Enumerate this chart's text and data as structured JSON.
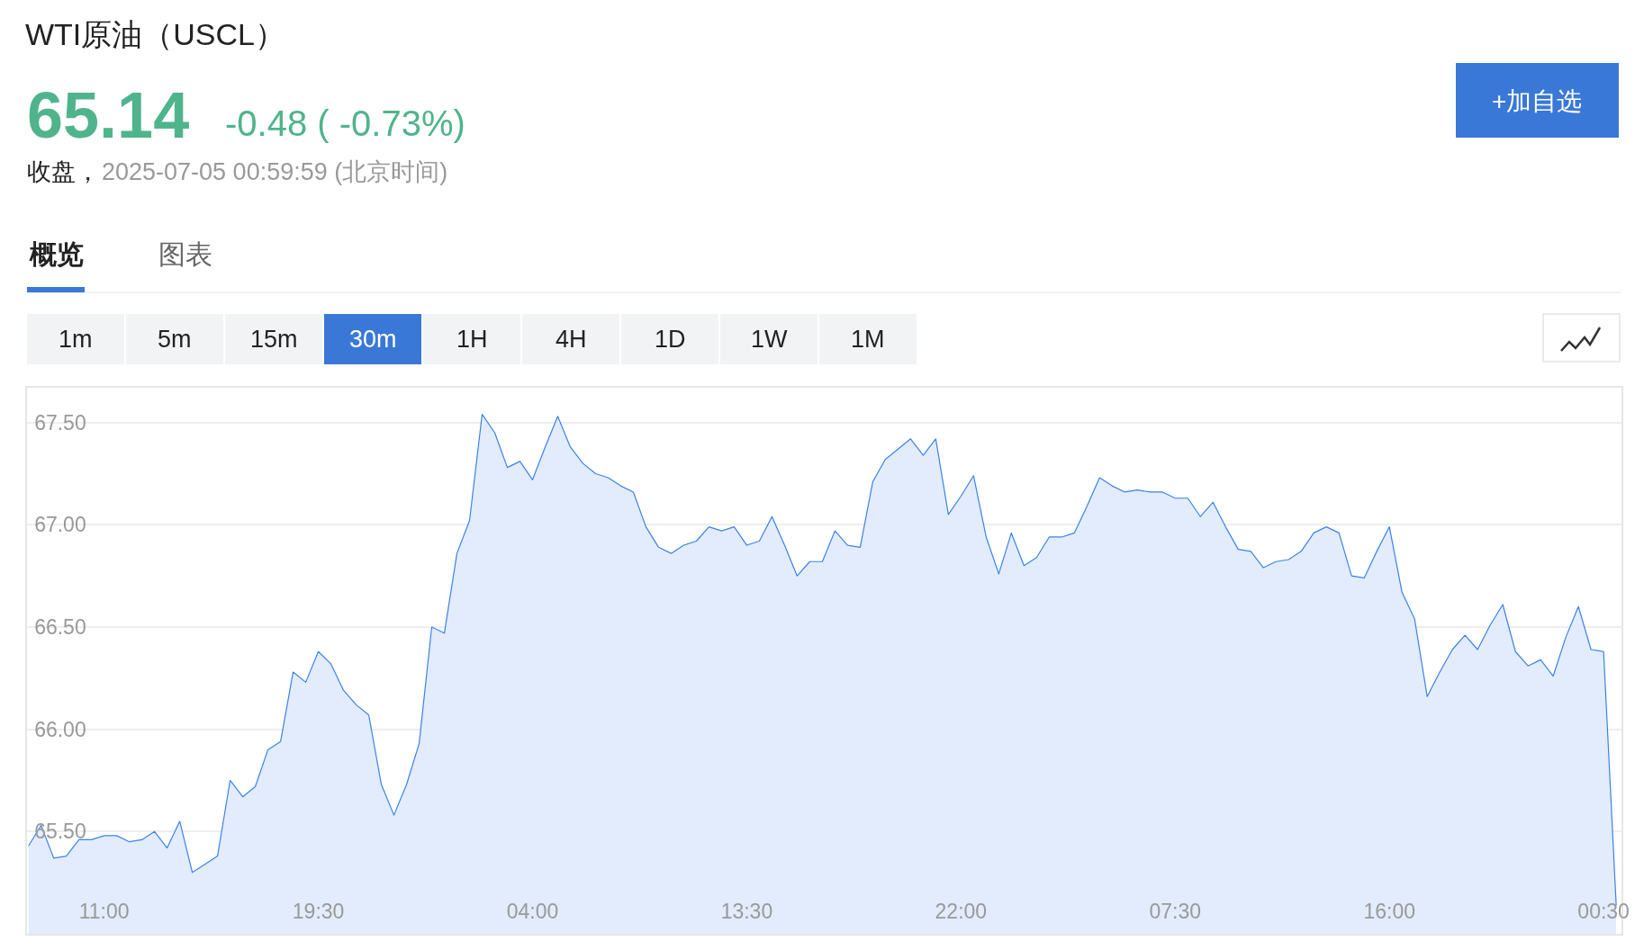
{
  "chart_data": {
    "type": "area",
    "title": "WTI原油（USCL）",
    "categories": [
      null,
      null,
      null,
      null,
      null,
      null,
      "11:00",
      null,
      null,
      null,
      null,
      null,
      null,
      null,
      null,
      null,
      null,
      null,
      null,
      null,
      null,
      null,
      null,
      "19:30",
      null,
      null,
      null,
      null,
      null,
      null,
      null,
      null,
      null,
      null,
      null,
      null,
      null,
      null,
      null,
      null,
      "04:00",
      null,
      null,
      null,
      null,
      null,
      null,
      null,
      null,
      null,
      null,
      null,
      null,
      null,
      null,
      null,
      null,
      "13:30",
      null,
      null,
      null,
      null,
      null,
      null,
      null,
      null,
      null,
      null,
      null,
      null,
      null,
      null,
      null,
      null,
      "22:00",
      null,
      null,
      null,
      null,
      null,
      null,
      null,
      null,
      null,
      null,
      null,
      null,
      null,
      null,
      null,
      null,
      "07:30",
      null,
      null,
      null,
      null,
      null,
      null,
      null,
      null,
      null,
      null,
      null,
      null,
      null,
      null,
      null,
      null,
      "16:00",
      null,
      null,
      null,
      null,
      null,
      null,
      null,
      null,
      null,
      null,
      null,
      null,
      null,
      null,
      null,
      null,
      "00:30",
      null
    ],
    "values": [
      65.43,
      65.53,
      65.37,
      65.38,
      65.46,
      65.46,
      65.48,
      65.48,
      65.45,
      65.46,
      65.5,
      65.42,
      65.55,
      65.3,
      65.34,
      65.38,
      65.75,
      65.67,
      65.72,
      65.9,
      65.94,
      66.28,
      66.23,
      66.38,
      66.32,
      66.19,
      66.12,
      66.07,
      65.73,
      65.58,
      65.73,
      65.93,
      66.5,
      66.47,
      66.86,
      67.02,
      67.54,
      67.45,
      67.28,
      67.31,
      67.22,
      67.38,
      67.53,
      67.38,
      67.3,
      67.25,
      67.23,
      67.19,
      67.16,
      66.99,
      66.89,
      66.86,
      66.9,
      66.92,
      66.99,
      66.97,
      66.99,
      66.9,
      66.92,
      67.04,
      66.9,
      66.75,
      66.82,
      66.82,
      66.97,
      66.9,
      66.89,
      67.21,
      67.32,
      67.37,
      67.42,
      67.34,
      67.42,
      67.05,
      67.14,
      67.24,
      66.94,
      66.76,
      66.96,
      66.8,
      66.84,
      66.94,
      66.94,
      66.96,
      67.09,
      67.23,
      67.19,
      67.16,
      67.17,
      67.16,
      67.16,
      67.13,
      67.13,
      67.04,
      67.11,
      66.99,
      66.88,
      66.87,
      66.79,
      66.82,
      66.83,
      66.87,
      66.96,
      66.99,
      66.96,
      66.75,
      66.74,
      66.87,
      66.99,
      66.67,
      66.54,
      66.16,
      66.28,
      66.39,
      66.46,
      66.39,
      66.51,
      66.61,
      66.38,
      66.31,
      66.34,
      66.26,
      66.45,
      66.6,
      66.39,
      66.38,
      65.14
    ],
    "color": "#3b82e8",
    "ylim": [
      65.0,
      67.67
    ],
    "yticks": [
      {
        "value": 65.5,
        "label": "65.50"
      },
      {
        "value": 66.0,
        "label": "66.00"
      },
      {
        "value": 66.5,
        "label": "66.50"
      },
      {
        "value": 67.0,
        "label": "67.00"
      },
      {
        "value": 67.5,
        "label": "67.50"
      }
    ],
    "grid": "y",
    "annotations": [
      "65.14",
      "-0.48 ( -0.73%)",
      "收盘，",
      "2025-07-05 00:59:59 (北京时间)",
      "概览",
      "图表",
      "+加自选",
      "1m",
      "5m",
      "15m",
      "30m",
      "1H",
      "4H",
      "1D",
      "1W",
      "1M"
    ]
  }
}
